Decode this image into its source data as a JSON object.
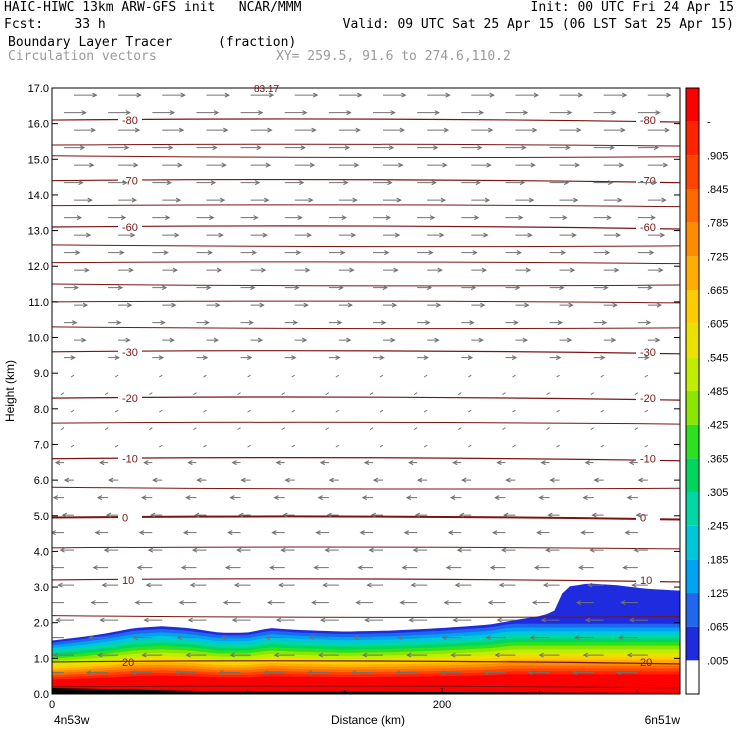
{
  "header": {
    "line1_left": "HAIC-HIWC 13km ARW-GFS init   NCAR/MMM",
    "line1_right": "Init: 00 UTC Fri 24 Apr 15",
    "line2_left": "Fcst:    33 h",
    "line2_right": "Valid: 09 UTC Sat 25 Apr 15 (06 LST Sat 25 Apr 15)",
    "line3_left": "Boundary Layer Tracer",
    "line3_mid": "(fraction)",
    "line4_left": "Circulation vectors",
    "line4_mid": "XY= 259.5, 91.6 to 274.6,110.2"
  },
  "chart_data": {
    "type": "cross-section",
    "xlabel": "Distance (km)",
    "ylabel": "Height (km)",
    "xlim": [
      0,
      322
    ],
    "ylim": [
      0,
      17
    ],
    "y_ticks": [
      "0.0",
      "1.0",
      "2.0",
      "3.0",
      "4.0",
      "5.0",
      "6.0",
      "7.0",
      "8.0",
      "9.0",
      "10.0",
      "11.0",
      "12.0",
      "13.0",
      "14.0",
      "15.0",
      "16.0",
      "17.0"
    ],
    "x_ticks": [
      {
        "value": 0,
        "label": "0"
      },
      {
        "value": 200,
        "label": "200"
      }
    ],
    "x_endpoint_labels": {
      "left": "4n53w",
      "right": "6n51w"
    },
    "tracer_surface_heights_km": [
      [
        0,
        1.5
      ],
      [
        15,
        1.6
      ],
      [
        28,
        1.7
      ],
      [
        42,
        1.85
      ],
      [
        56,
        1.9
      ],
      [
        70,
        1.85
      ],
      [
        86,
        1.72
      ],
      [
        100,
        1.72
      ],
      [
        112,
        1.85
      ],
      [
        125,
        1.8
      ],
      [
        150,
        1.75
      ],
      [
        175,
        1.78
      ],
      [
        200,
        1.85
      ],
      [
        225,
        1.95
      ],
      [
        240,
        2.1
      ],
      [
        252,
        2.2
      ],
      [
        258,
        2.35
      ],
      [
        263,
        3.0
      ],
      [
        275,
        3.1
      ],
      [
        290,
        3.05
      ],
      [
        305,
        2.95
      ],
      [
        322,
        2.9
      ]
    ],
    "temperature_contours": [
      {
        "label": "-80",
        "height_km": 16.1
      },
      {
        "label": "-70",
        "height_km": 14.4
      },
      {
        "label": "-60",
        "height_km": 13.1
      },
      {
        "label": "-30",
        "height_km": 9.6
      },
      {
        "label": "-20",
        "height_km": 8.3
      },
      {
        "label": "-10",
        "height_km": 6.6
      },
      {
        "label": "0",
        "height_km": 4.95
      },
      {
        "label": "10",
        "height_km": 3.2
      },
      {
        "label": "20",
        "height_km": 0.9
      }
    ],
    "top_contour_label": "83.17",
    "colorbar": {
      "labels": [
        ".005",
        ".065",
        ".125",
        ".185",
        ".245",
        ".305",
        ".365",
        ".425",
        ".485",
        ".545",
        ".605",
        ".665",
        ".725",
        ".785",
        ".845",
        ".905",
        "-"
      ],
      "colors": [
        "#ffffff",
        "#1f2bdf",
        "#1f67ef",
        "#00a2f2",
        "#00c8d8",
        "#00d7a7",
        "#00d65e",
        "#2ee11f",
        "#8de600",
        "#c1ed00",
        "#ece000",
        "#ffcc00",
        "#ffae00",
        "#ff8c00",
        "#ff6a00",
        "#ff4400",
        "#ff2400",
        "#ff0000"
      ]
    },
    "vectors": {
      "upper_direction": "eastward",
      "lower_direction": "westward",
      "transition_height_km": 9.0
    }
  }
}
